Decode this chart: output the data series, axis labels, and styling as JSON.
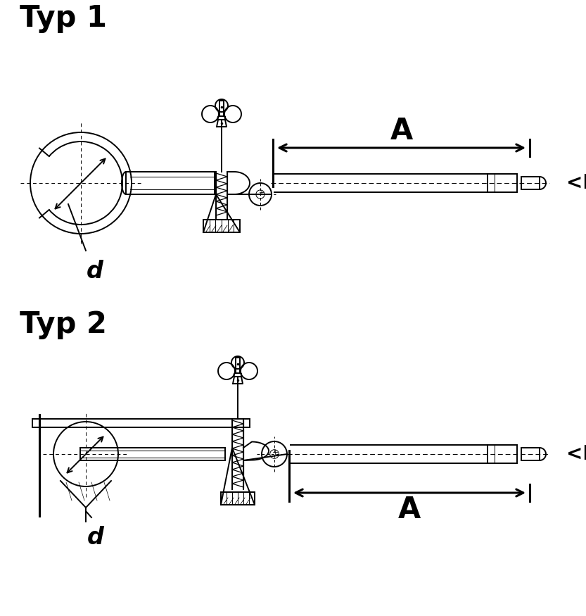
{
  "bg_color": "#ffffff",
  "line_color": "#000000",
  "title1": "Typ 1",
  "title2": "Typ 2",
  "label_d": "d",
  "label_A": "A",
  "label_D": "<D",
  "title_fontsize": 30,
  "label_fontsize": 20,
  "dim_fontsize": 30
}
